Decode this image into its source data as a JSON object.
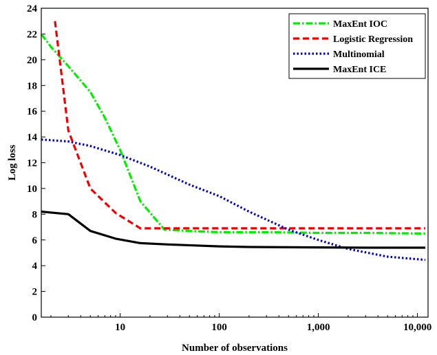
{
  "chart_data": {
    "type": "line",
    "title": "",
    "xlabel": "Number of observations",
    "ylabel": "Log loss",
    "xscale": "log",
    "xlim": [
      1.6,
      12800
    ],
    "ylim": [
      0,
      24
    ],
    "grid": false,
    "legend_position": "top-right",
    "x_ticks": [
      10,
      100,
      1000,
      10000
    ],
    "x_tick_labels": [
      "10",
      "100",
      "1,000",
      "10,000"
    ],
    "y_ticks": [
      0,
      2,
      4,
      6,
      8,
      10,
      12,
      14,
      16,
      18,
      20,
      22,
      24
    ],
    "y_tick_labels": [
      "0",
      "2",
      "4",
      "6",
      "8",
      "10",
      "12",
      "14",
      "16",
      "18",
      "20",
      "22",
      "24"
    ],
    "series": [
      {
        "name": "MaxEnt IOC",
        "color": "#00ee00",
        "style": "dashdot",
        "points": [
          [
            1.6,
            22.0
          ],
          [
            2,
            21.0
          ],
          [
            3,
            19.5
          ],
          [
            5,
            17.5
          ],
          [
            7,
            15.5
          ],
          [
            10,
            13.0
          ],
          [
            16,
            9.0
          ],
          [
            28,
            6.8
          ],
          [
            50,
            6.7
          ],
          [
            100,
            6.6
          ],
          [
            300,
            6.6
          ],
          [
            1000,
            6.55
          ],
          [
            3000,
            6.55
          ],
          [
            12000,
            6.5
          ]
        ]
      },
      {
        "name": "Logistic Regression",
        "color": "#ee0000",
        "style": "dashed",
        "points": [
          [
            2.2,
            23.0
          ],
          [
            3,
            14.5
          ],
          [
            5,
            10.0
          ],
          [
            9,
            8.1
          ],
          [
            16,
            6.9
          ],
          [
            30,
            6.9
          ],
          [
            100,
            6.9
          ],
          [
            1000,
            6.9
          ],
          [
            12000,
            6.9
          ]
        ]
      },
      {
        "name": "Multinomial",
        "color": "#0000cc",
        "style": "dotted",
        "points": [
          [
            1.6,
            13.8
          ],
          [
            3,
            13.65
          ],
          [
            5,
            13.3
          ],
          [
            10,
            12.6
          ],
          [
            20,
            11.7
          ],
          [
            50,
            10.3
          ],
          [
            100,
            9.4
          ],
          [
            200,
            8.2
          ],
          [
            500,
            6.8
          ],
          [
            1000,
            6.0
          ],
          [
            2000,
            5.3
          ],
          [
            5000,
            4.7
          ],
          [
            12000,
            4.45
          ]
        ]
      },
      {
        "name": "MaxEnt ICE",
        "color": "#000000",
        "style": "solid",
        "points": [
          [
            1.6,
            8.2
          ],
          [
            3,
            8.0
          ],
          [
            5,
            6.7
          ],
          [
            9,
            6.1
          ],
          [
            16,
            5.75
          ],
          [
            30,
            5.65
          ],
          [
            100,
            5.5
          ],
          [
            200,
            5.45
          ],
          [
            1000,
            5.42
          ],
          [
            3000,
            5.4
          ],
          [
            12000,
            5.4
          ]
        ]
      }
    ]
  }
}
